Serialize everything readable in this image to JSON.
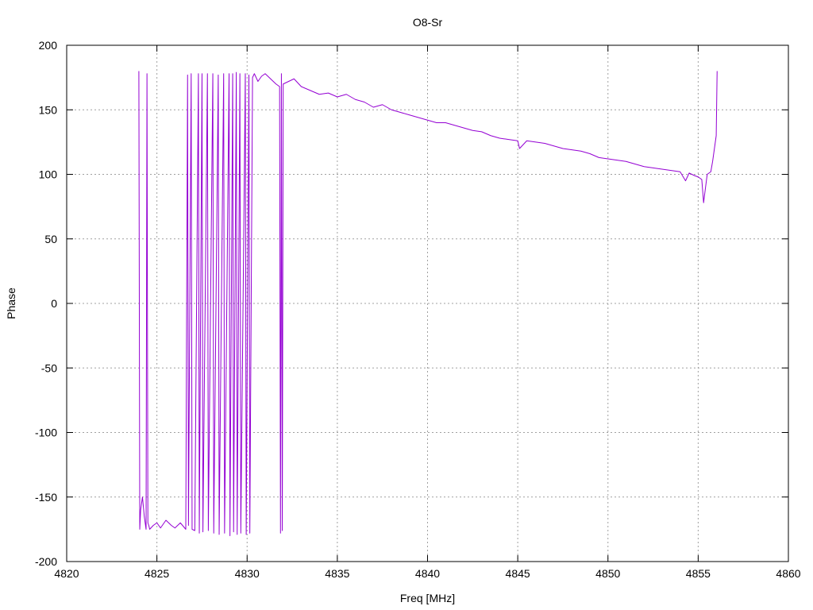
{
  "chart_data": {
    "type": "line",
    "title": "O8-Sr",
    "xlabel": "Freq [MHz]",
    "ylabel": "Phase",
    "xlim": [
      4820,
      4860
    ],
    "ylim": [
      -200,
      200
    ],
    "x_ticks": [
      4820,
      4825,
      4830,
      4835,
      4840,
      4845,
      4850,
      4855,
      4860
    ],
    "y_ticks": [
      -200,
      -150,
      -100,
      -50,
      0,
      50,
      100,
      150,
      200
    ],
    "grid": true,
    "legend": "none",
    "series": [
      {
        "color": "#9400d3",
        "x": [
          4824.0,
          4824.05,
          4824.1,
          4824.2,
          4824.3,
          4824.4,
          4824.45,
          4824.5,
          4824.55,
          4824.6,
          4824.8,
          4825.0,
          4825.2,
          4825.5,
          4825.8,
          4826.0,
          4826.3,
          4826.6,
          4826.7,
          4826.75,
          4826.9,
          4826.95,
          4827.1,
          4827.3,
          4827.35,
          4827.5,
          4827.55,
          4827.8,
          4827.85,
          4828.1,
          4828.15,
          4828.4,
          4828.45,
          4828.7,
          4828.75,
          4829.0,
          4829.05,
          4829.2,
          4829.25,
          4829.4,
          4829.45,
          4829.6,
          4829.65,
          4829.9,
          4829.95,
          4830.1,
          4830.15,
          4830.3,
          4830.4,
          4830.6,
          4830.8,
          4831.0,
          4831.3,
          4831.6,
          4831.8,
          4831.85,
          4831.9,
          4831.95,
          4832.0,
          4832.3,
          4832.6,
          4833.0,
          4833.5,
          4834.0,
          4834.5,
          4835.0,
          4835.5,
          4836.0,
          4836.5,
          4837.0,
          4837.5,
          4838.0,
          4838.5,
          4839.0,
          4839.5,
          4840.0,
          4840.5,
          4841.0,
          4841.5,
          4842.0,
          4842.5,
          4843.0,
          4843.5,
          4844.0,
          4844.5,
          4845.0,
          4845.1,
          4845.5,
          4846.0,
          4846.5,
          4847.0,
          4847.5,
          4848.0,
          4848.5,
          4849.0,
          4849.5,
          4850.0,
          4850.5,
          4851.0,
          4851.5,
          4852.0,
          4852.5,
          4853.0,
          4853.5,
          4854.0,
          4854.3,
          4854.5,
          4854.8,
          4855.0,
          4855.2,
          4855.3,
          4855.5,
          4855.7,
          4855.8,
          4855.9,
          4856.0,
          4856.05
        ],
        "values": [
          180,
          -175,
          -160,
          -150,
          -165,
          -175,
          178,
          -170,
          -172,
          -175,
          -172,
          -170,
          -174,
          -168,
          -172,
          -174,
          -170,
          -175,
          177,
          -172,
          178,
          -175,
          -176,
          178,
          -178,
          178,
          -177,
          178,
          -176,
          178,
          -178,
          177,
          -179,
          178,
          -178,
          178,
          -180,
          178,
          -177,
          179,
          -179,
          178,
          -178,
          178,
          -179,
          177,
          -178,
          175,
          178,
          172,
          176,
          178,
          174,
          170,
          168,
          -178,
          178,
          -176,
          170,
          172,
          174,
          168,
          165,
          162,
          163,
          160,
          162,
          158,
          156,
          152,
          154,
          150,
          148,
          146,
          144,
          142,
          140,
          140,
          138,
          136,
          134,
          133,
          130,
          128,
          127,
          126,
          120,
          126,
          125,
          124,
          122,
          120,
          119,
          118,
          116,
          113,
          112,
          111,
          110,
          108,
          106,
          105,
          104,
          103,
          102,
          95,
          101,
          99,
          98,
          96,
          78,
          100,
          102,
          110,
          120,
          130,
          180
        ]
      }
    ]
  }
}
